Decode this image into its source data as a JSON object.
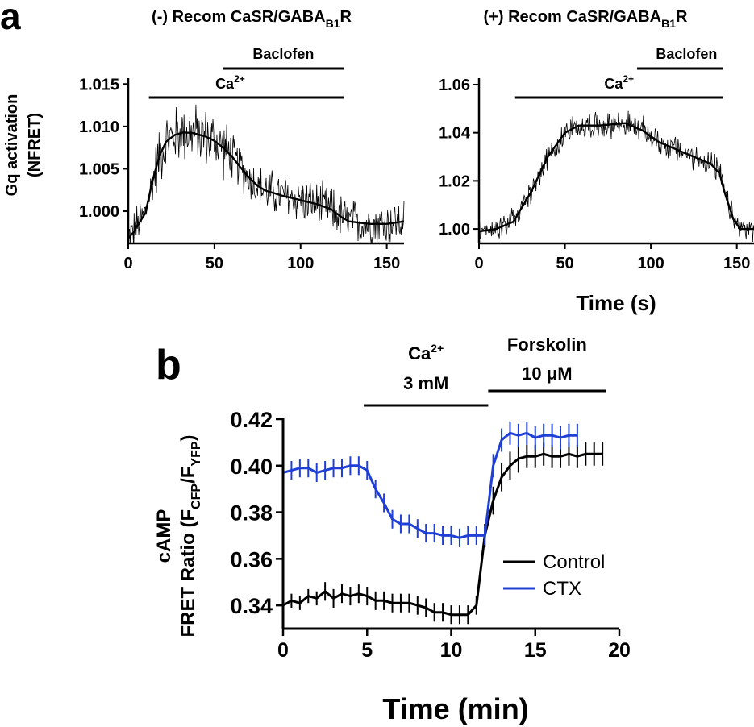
{
  "figure": {
    "panel_a_letter": "a",
    "panel_b_letter": "b"
  },
  "chart_data": [
    {
      "id": "a1",
      "type": "line",
      "title_main": "(-) Recom CaSR/GABA",
      "title_sub": "B1",
      "title_tail": "R",
      "ylabel_line1": "Gq activation",
      "ylabel_line2": "(NFRET)",
      "xlabel": "",
      "xlim": [
        0,
        160
      ],
      "ylim": [
        0.9962,
        1.0155
      ],
      "xticks": [
        0,
        50,
        100,
        150
      ],
      "yticks": [
        1.0,
        1.005,
        1.01,
        1.015
      ],
      "ytick_labels": [
        "1.000",
        "1.005",
        "1.010",
        "1.015"
      ],
      "ca_bar": {
        "label": "Ca",
        "sup": "2+",
        "start": 12,
        "end": 125
      },
      "baclofen_bar": {
        "label": "Baclofen",
        "start": 55,
        "end": 125
      },
      "trend": [
        [
          0,
          0.9968
        ],
        [
          3,
          0.9975
        ],
        [
          6,
          0.9985
        ],
        [
          10,
          0.9998
        ],
        [
          14,
          1.0035
        ],
        [
          18,
          1.0065
        ],
        [
          22,
          1.0082
        ],
        [
          27,
          1.009
        ],
        [
          32,
          1.0093
        ],
        [
          38,
          1.0092
        ],
        [
          45,
          1.0088
        ],
        [
          50,
          1.0083
        ],
        [
          55,
          1.0075
        ],
        [
          60,
          1.0065
        ],
        [
          65,
          1.0052
        ],
        [
          70,
          1.004
        ],
        [
          75,
          1.003
        ],
        [
          80,
          1.0024
        ],
        [
          90,
          1.0018
        ],
        [
          100,
          1.0013
        ],
        [
          110,
          1.0008
        ],
        [
          118,
          1.0002
        ],
        [
          123,
          0.9994
        ],
        [
          128,
          0.9988
        ],
        [
          140,
          0.9985
        ],
        [
          150,
          0.9985
        ],
        [
          160,
          0.9988
        ]
      ],
      "noise_amplitude": 0.0032,
      "samples": 420
    },
    {
      "id": "a2",
      "type": "line",
      "title_main": "(+) Recom CaSR/GABA",
      "title_sub": "B1",
      "title_tail": "R",
      "xlabel": "Time (s)",
      "xlim": [
        0,
        160
      ],
      "ylim": [
        0.994,
        1.062
      ],
      "xticks": [
        0,
        50,
        100,
        150
      ],
      "yticks": [
        1.0,
        1.02,
        1.04,
        1.06
      ],
      "ytick_labels": [
        "1.00",
        "1.02",
        "1.04",
        "1.06"
      ],
      "ca_bar": {
        "label": "Ca",
        "sup": "2+",
        "start": 21,
        "end": 142
      },
      "baclofen_bar": {
        "label": "Baclofen",
        "start": 92,
        "end": 142
      },
      "trend": [
        [
          0,
          0.999
        ],
        [
          10,
          1.0
        ],
        [
          20,
          1.003
        ],
        [
          30,
          1.015
        ],
        [
          40,
          1.03
        ],
        [
          50,
          1.04
        ],
        [
          58,
          1.043
        ],
        [
          70,
          1.043
        ],
        [
          85,
          1.044
        ],
        [
          95,
          1.041
        ],
        [
          105,
          1.036
        ],
        [
          115,
          1.033
        ],
        [
          125,
          1.03
        ],
        [
          135,
          1.027
        ],
        [
          140,
          1.023
        ],
        [
          143,
          1.015
        ],
        [
          148,
          1.004
        ],
        [
          152,
          1.0
        ],
        [
          160,
          1.0
        ]
      ],
      "noise_amplitude": 0.0065,
      "samples": 420
    },
    {
      "id": "b",
      "type": "line",
      "ylabel_line1": "cAMP",
      "ylabel_line2_main": "FRET Ratio (F",
      "ylabel_sub1": "CFP",
      "ylabel_mid": "/F",
      "ylabel_sub2": "YFP",
      "ylabel_tail": ")",
      "xlabel": "Time (min)",
      "xlim": [
        0,
        20
      ],
      "ylim": [
        0.33,
        0.42
      ],
      "xticks": [
        0,
        5,
        10,
        15,
        20
      ],
      "yticks": [
        0.34,
        0.36,
        0.38,
        0.4,
        0.42
      ],
      "ytick_labels": [
        "0.34",
        "0.36",
        "0.38",
        "0.40",
        "0.42"
      ],
      "ca_bar": {
        "label": "Ca",
        "sup": "2+",
        "line2": "3 mM",
        "start": 4.8,
        "end": 12.2
      },
      "forskolin_bar": {
        "label": "Forskolin",
        "line2": "10 μM",
        "start": 12.2,
        "end": 19.2
      },
      "legend_position": "right-middle",
      "series": [
        {
          "name": "Control",
          "color": "#000000",
          "x": [
            0,
            0.5,
            1,
            1.5,
            2,
            2.5,
            3,
            3.5,
            4,
            4.5,
            5,
            5.5,
            6,
            6.5,
            7,
            7.5,
            8,
            8.5,
            9,
            9.5,
            10,
            10.5,
            11,
            11.5,
            12,
            12.5,
            13,
            13.5,
            14,
            14.5,
            15,
            15.5,
            16,
            16.5,
            17,
            17.5,
            18,
            18.5,
            19
          ],
          "y": [
            0.34,
            0.342,
            0.341,
            0.344,
            0.343,
            0.346,
            0.343,
            0.345,
            0.344,
            0.345,
            0.344,
            0.342,
            0.342,
            0.341,
            0.341,
            0.341,
            0.34,
            0.339,
            0.337,
            0.337,
            0.336,
            0.336,
            0.336,
            0.34,
            0.37,
            0.385,
            0.395,
            0.4,
            0.403,
            0.404,
            0.404,
            0.405,
            0.404,
            0.404,
            0.405,
            0.404,
            0.405,
            0.405,
            0.405
          ],
          "err": [
            0.003,
            0.003,
            0.003,
            0.003,
            0.003,
            0.004,
            0.004,
            0.004,
            0.004,
            0.004,
            0.004,
            0.004,
            0.004,
            0.004,
            0.004,
            0.004,
            0.004,
            0.004,
            0.004,
            0.004,
            0.004,
            0.004,
            0.004,
            0.004,
            0.005,
            0.006,
            0.006,
            0.006,
            0.006,
            0.005,
            0.005,
            0.005,
            0.005,
            0.005,
            0.005,
            0.005,
            0.005,
            0.005,
            0.005
          ]
        },
        {
          "name": "CTX",
          "color": "#1f3fd6",
          "x": [
            0,
            0.5,
            1,
            1.5,
            2,
            2.5,
            3,
            3.5,
            4,
            4.5,
            5,
            5.5,
            6,
            6.5,
            7,
            7.5,
            8,
            8.5,
            9,
            9.5,
            10,
            10.5,
            11,
            11.5,
            12,
            12.5,
            13,
            13.5,
            14,
            14.5,
            15,
            15.5,
            16,
            16.5,
            17,
            17.5
          ],
          "y": [
            0.397,
            0.398,
            0.399,
            0.399,
            0.397,
            0.398,
            0.399,
            0.399,
            0.4,
            0.4,
            0.398,
            0.39,
            0.384,
            0.377,
            0.375,
            0.375,
            0.373,
            0.371,
            0.371,
            0.37,
            0.37,
            0.369,
            0.37,
            0.37,
            0.37,
            0.4,
            0.411,
            0.414,
            0.413,
            0.414,
            0.412,
            0.413,
            0.413,
            0.412,
            0.413,
            0.413
          ],
          "err": [
            0.004,
            0.004,
            0.004,
            0.004,
            0.004,
            0.004,
            0.004,
            0.004,
            0.004,
            0.004,
            0.004,
            0.004,
            0.004,
            0.004,
            0.004,
            0.004,
            0.004,
            0.004,
            0.004,
            0.004,
            0.004,
            0.004,
            0.004,
            0.004,
            0.004,
            0.005,
            0.005,
            0.005,
            0.005,
            0.005,
            0.005,
            0.005,
            0.005,
            0.005,
            0.005,
            0.005
          ]
        }
      ]
    }
  ]
}
